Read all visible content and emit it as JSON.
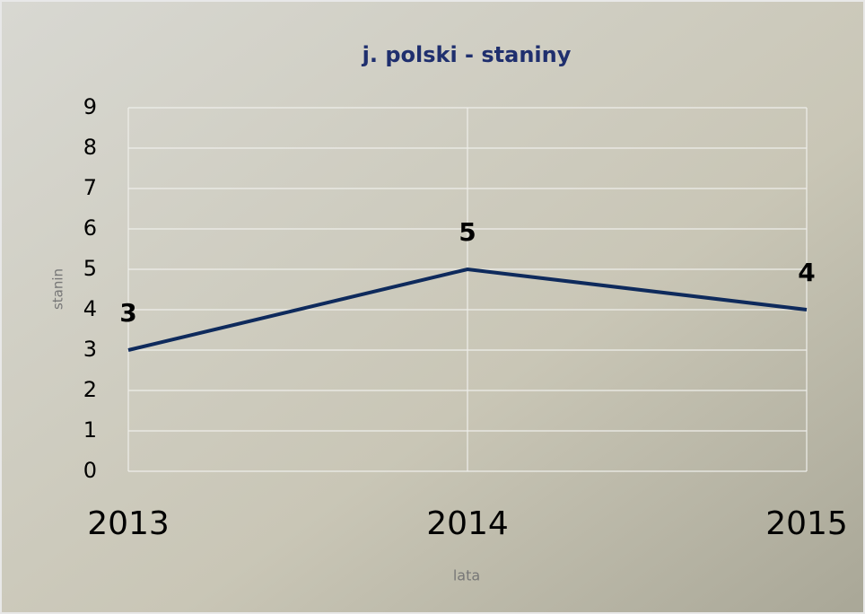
{
  "chart_data": {
    "type": "line",
    "title": "j. polski - staniny",
    "categories": [
      "2013",
      "2014",
      "2015"
    ],
    "series": [
      {
        "name": "stanin",
        "color": "#0e2a5c",
        "values": [
          3,
          5,
          4
        ]
      }
    ],
    "ylim": [
      0,
      9
    ],
    "yticks": [
      0,
      1,
      2,
      3,
      4,
      5,
      6,
      7,
      8,
      9
    ],
    "y_label": "stanin",
    "x_label": "lata",
    "grid": true
  }
}
